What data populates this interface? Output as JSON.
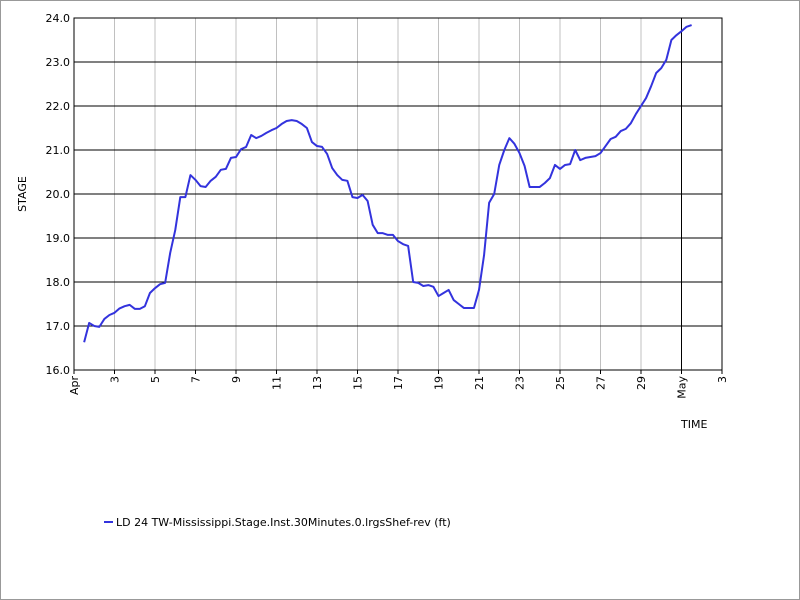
{
  "chart_data": {
    "type": "line",
    "ylabel": "STAGE",
    "xlabel": "TIME",
    "x": [
      1.5,
      1.75,
      2,
      2.25,
      2.5,
      2.75,
      3,
      3.25,
      3.5,
      3.75,
      4,
      4.25,
      4.5,
      4.75,
      5,
      5.25,
      5.5,
      5.75,
      6,
      6.25,
      6.5,
      6.75,
      7,
      7.25,
      7.5,
      7.75,
      8,
      8.25,
      8.5,
      8.75,
      9,
      9.25,
      9.5,
      9.75,
      10,
      10.25,
      10.5,
      10.75,
      11,
      11.25,
      11.5,
      11.75,
      12,
      12.25,
      12.5,
      12.75,
      13,
      13.25,
      13.5,
      13.75,
      14,
      14.25,
      14.5,
      14.75,
      15,
      15.25,
      15.5,
      15.75,
      16,
      16.25,
      16.5,
      16.75,
      17,
      17.25,
      17.5,
      17.75,
      18,
      18.25,
      18.5,
      18.75,
      19,
      19.25,
      19.5,
      19.75,
      20,
      20.25,
      20.5,
      20.75,
      21,
      21.25,
      21.5,
      21.75,
      22,
      22.25,
      22.5,
      22.75,
      23,
      23.25,
      23.5,
      23.75,
      24,
      24.25,
      24.5,
      24.75,
      25,
      25.25,
      25.5,
      25.75,
      26,
      26.25,
      26.5,
      26.75,
      27,
      27.25,
      27.5,
      27.75,
      28,
      28.25,
      28.5,
      28.75,
      29,
      29.25,
      29.5,
      29.75,
      30,
      30.25,
      30.5,
      30.75,
      31,
      31.25,
      31.5
    ],
    "series": [
      {
        "name": "LD 24 TW-Mississippi.Stage.Inst.30Minutes.0.lrgsShef-rev (ft)",
        "color": "#3333dd",
        "values": [
          16.63,
          17.07,
          17.0,
          16.98,
          17.16,
          17.25,
          17.3,
          17.4,
          17.45,
          17.48,
          17.39,
          17.39,
          17.45,
          17.75,
          17.86,
          17.95,
          17.98,
          18.66,
          19.18,
          19.93,
          19.93,
          20.43,
          20.32,
          20.18,
          20.16,
          20.3,
          20.39,
          20.55,
          20.57,
          20.82,
          20.84,
          21.02,
          21.07,
          21.34,
          21.27,
          21.32,
          21.39,
          21.45,
          21.5,
          21.59,
          21.66,
          21.68,
          21.66,
          21.59,
          21.5,
          21.18,
          21.09,
          21.07,
          20.91,
          20.59,
          20.43,
          20.32,
          20.3,
          19.93,
          19.91,
          19.98,
          19.84,
          19.3,
          19.11,
          19.11,
          19.07,
          19.07,
          18.93,
          18.86,
          18.82,
          18.0,
          17.98,
          17.91,
          17.93,
          17.89,
          17.68,
          17.75,
          17.82,
          17.59,
          17.5,
          17.41,
          17.41,
          17.41,
          17.82,
          18.61,
          19.8,
          20.0,
          20.66,
          21.0,
          21.27,
          21.14,
          20.93,
          20.64,
          20.16,
          20.16,
          20.16,
          20.25,
          20.36,
          20.66,
          20.57,
          20.66,
          20.68,
          21.0,
          20.77,
          20.82,
          20.84,
          20.86,
          20.93,
          21.09,
          21.25,
          21.3,
          21.43,
          21.48,
          21.61,
          21.82,
          22.0,
          22.18,
          22.45,
          22.75,
          22.86,
          23.05,
          23.5,
          23.61,
          23.7,
          23.8,
          23.84
        ]
      }
    ],
    "xlim": [
      1,
      33
    ],
    "ylim": [
      16,
      24
    ],
    "xticks": [
      {
        "value": 1,
        "label": "Apr"
      },
      3,
      5,
      7,
      9,
      11,
      13,
      15,
      17,
      19,
      21,
      23,
      25,
      27,
      29,
      {
        "value": 31,
        "label": "May"
      },
      {
        "value": 33,
        "label": "3"
      }
    ],
    "yticks": [
      {
        "value": 16,
        "label": "16.0"
      },
      {
        "value": 17,
        "label": "17.0"
      },
      {
        "value": 18,
        "label": "18.0"
      },
      {
        "value": 19,
        "label": "19.0"
      },
      {
        "value": 20,
        "label": "20.0"
      },
      {
        "value": 21,
        "label": "21.0"
      },
      {
        "value": 22,
        "label": "22.0"
      },
      {
        "value": 23,
        "label": "23.0"
      },
      {
        "value": 24,
        "label": "24.0"
      }
    ],
    "xgrid_color": "#c0c0c0",
    "ygrid_color": "#000000",
    "vlines": [
      {
        "x": 31,
        "color": "#000000"
      }
    ]
  }
}
